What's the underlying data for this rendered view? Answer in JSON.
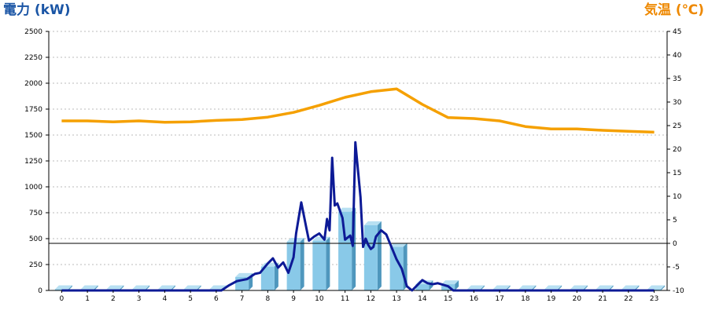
{
  "chart_data": {
    "type": "bar+line",
    "left_axis_title": "電力 (kW)",
    "right_axis_title": "気温 (℃)",
    "left_axis_color": "#1a55a5",
    "right_axis_color": "#ee8800",
    "bar_color": "#89c9e8",
    "power_line_color": "#0d1a96",
    "temp_line_color": "#f5a000",
    "grid": true,
    "ylim_left": [
      0,
      2500
    ],
    "ylim_right": [
      -10,
      45
    ],
    "yticks_left": [
      0,
      250,
      500,
      750,
      1000,
      1250,
      1500,
      1750,
      2000,
      2250,
      2500
    ],
    "yticks_right": [
      -10,
      -5,
      0,
      5,
      10,
      15,
      20,
      25,
      30,
      35,
      40,
      45
    ],
    "categories": [
      "0",
      "1",
      "2",
      "3",
      "4",
      "5",
      "6",
      "7",
      "8",
      "9",
      "10",
      "11",
      "12",
      "13",
      "14",
      "15",
      "16",
      "17",
      "18",
      "19",
      "20",
      "21",
      "22",
      "23"
    ],
    "hourly_power_kw": [
      0,
      0,
      0,
      0,
      0,
      0,
      0,
      130,
      230,
      470,
      480,
      760,
      630,
      420,
      60,
      60,
      0,
      0,
      0,
      0,
      0,
      0,
      0,
      0
    ],
    "power_series": {
      "x": [
        0,
        6.2,
        6.5,
        6.8,
        7.0,
        7.2,
        7.5,
        7.7,
        8.0,
        8.2,
        8.4,
        8.6,
        8.8,
        9.0,
        9.1,
        9.3,
        9.5,
        9.6,
        9.8,
        10.0,
        10.2,
        10.3,
        10.4,
        10.5,
        10.6,
        10.7,
        10.9,
        11.0,
        11.2,
        11.3,
        11.4,
        11.6,
        11.7,
        11.8,
        11.9,
        12.0,
        12.1,
        12.2,
        12.4,
        12.6,
        12.8,
        13.0,
        13.2,
        13.4,
        13.6,
        13.8,
        14.0,
        14.2,
        14.4,
        14.6,
        14.8,
        15.0,
        15.2,
        15.4,
        15.6,
        16.0,
        23.0
      ],
      "y": [
        0,
        0,
        50,
        90,
        100,
        110,
        160,
        170,
        260,
        310,
        220,
        270,
        170,
        320,
        550,
        850,
        600,
        480,
        520,
        550,
        490,
        690,
        580,
        1280,
        820,
        840,
        700,
        490,
        530,
        430,
        1430,
        900,
        420,
        500,
        440,
        400,
        420,
        520,
        580,
        540,
        420,
        300,
        210,
        40,
        0,
        50,
        100,
        70,
        60,
        70,
        55,
        40,
        0,
        0,
        0,
        0,
        0
      ]
    },
    "temp_series": {
      "x": [
        0,
        1,
        2,
        3,
        4,
        5,
        6,
        7,
        8,
        9,
        10,
        11,
        12,
        13,
        14,
        15,
        16,
        17,
        18,
        19,
        20,
        21,
        22,
        23
      ],
      "y": [
        26.0,
        26.0,
        25.8,
        26.0,
        25.7,
        25.8,
        26.1,
        26.3,
        26.8,
        27.8,
        29.3,
        31.0,
        32.2,
        32.8,
        29.5,
        26.7,
        26.5,
        26.0,
        24.8,
        24.3,
        24.3,
        24.0,
        23.8,
        23.6
      ]
    }
  }
}
